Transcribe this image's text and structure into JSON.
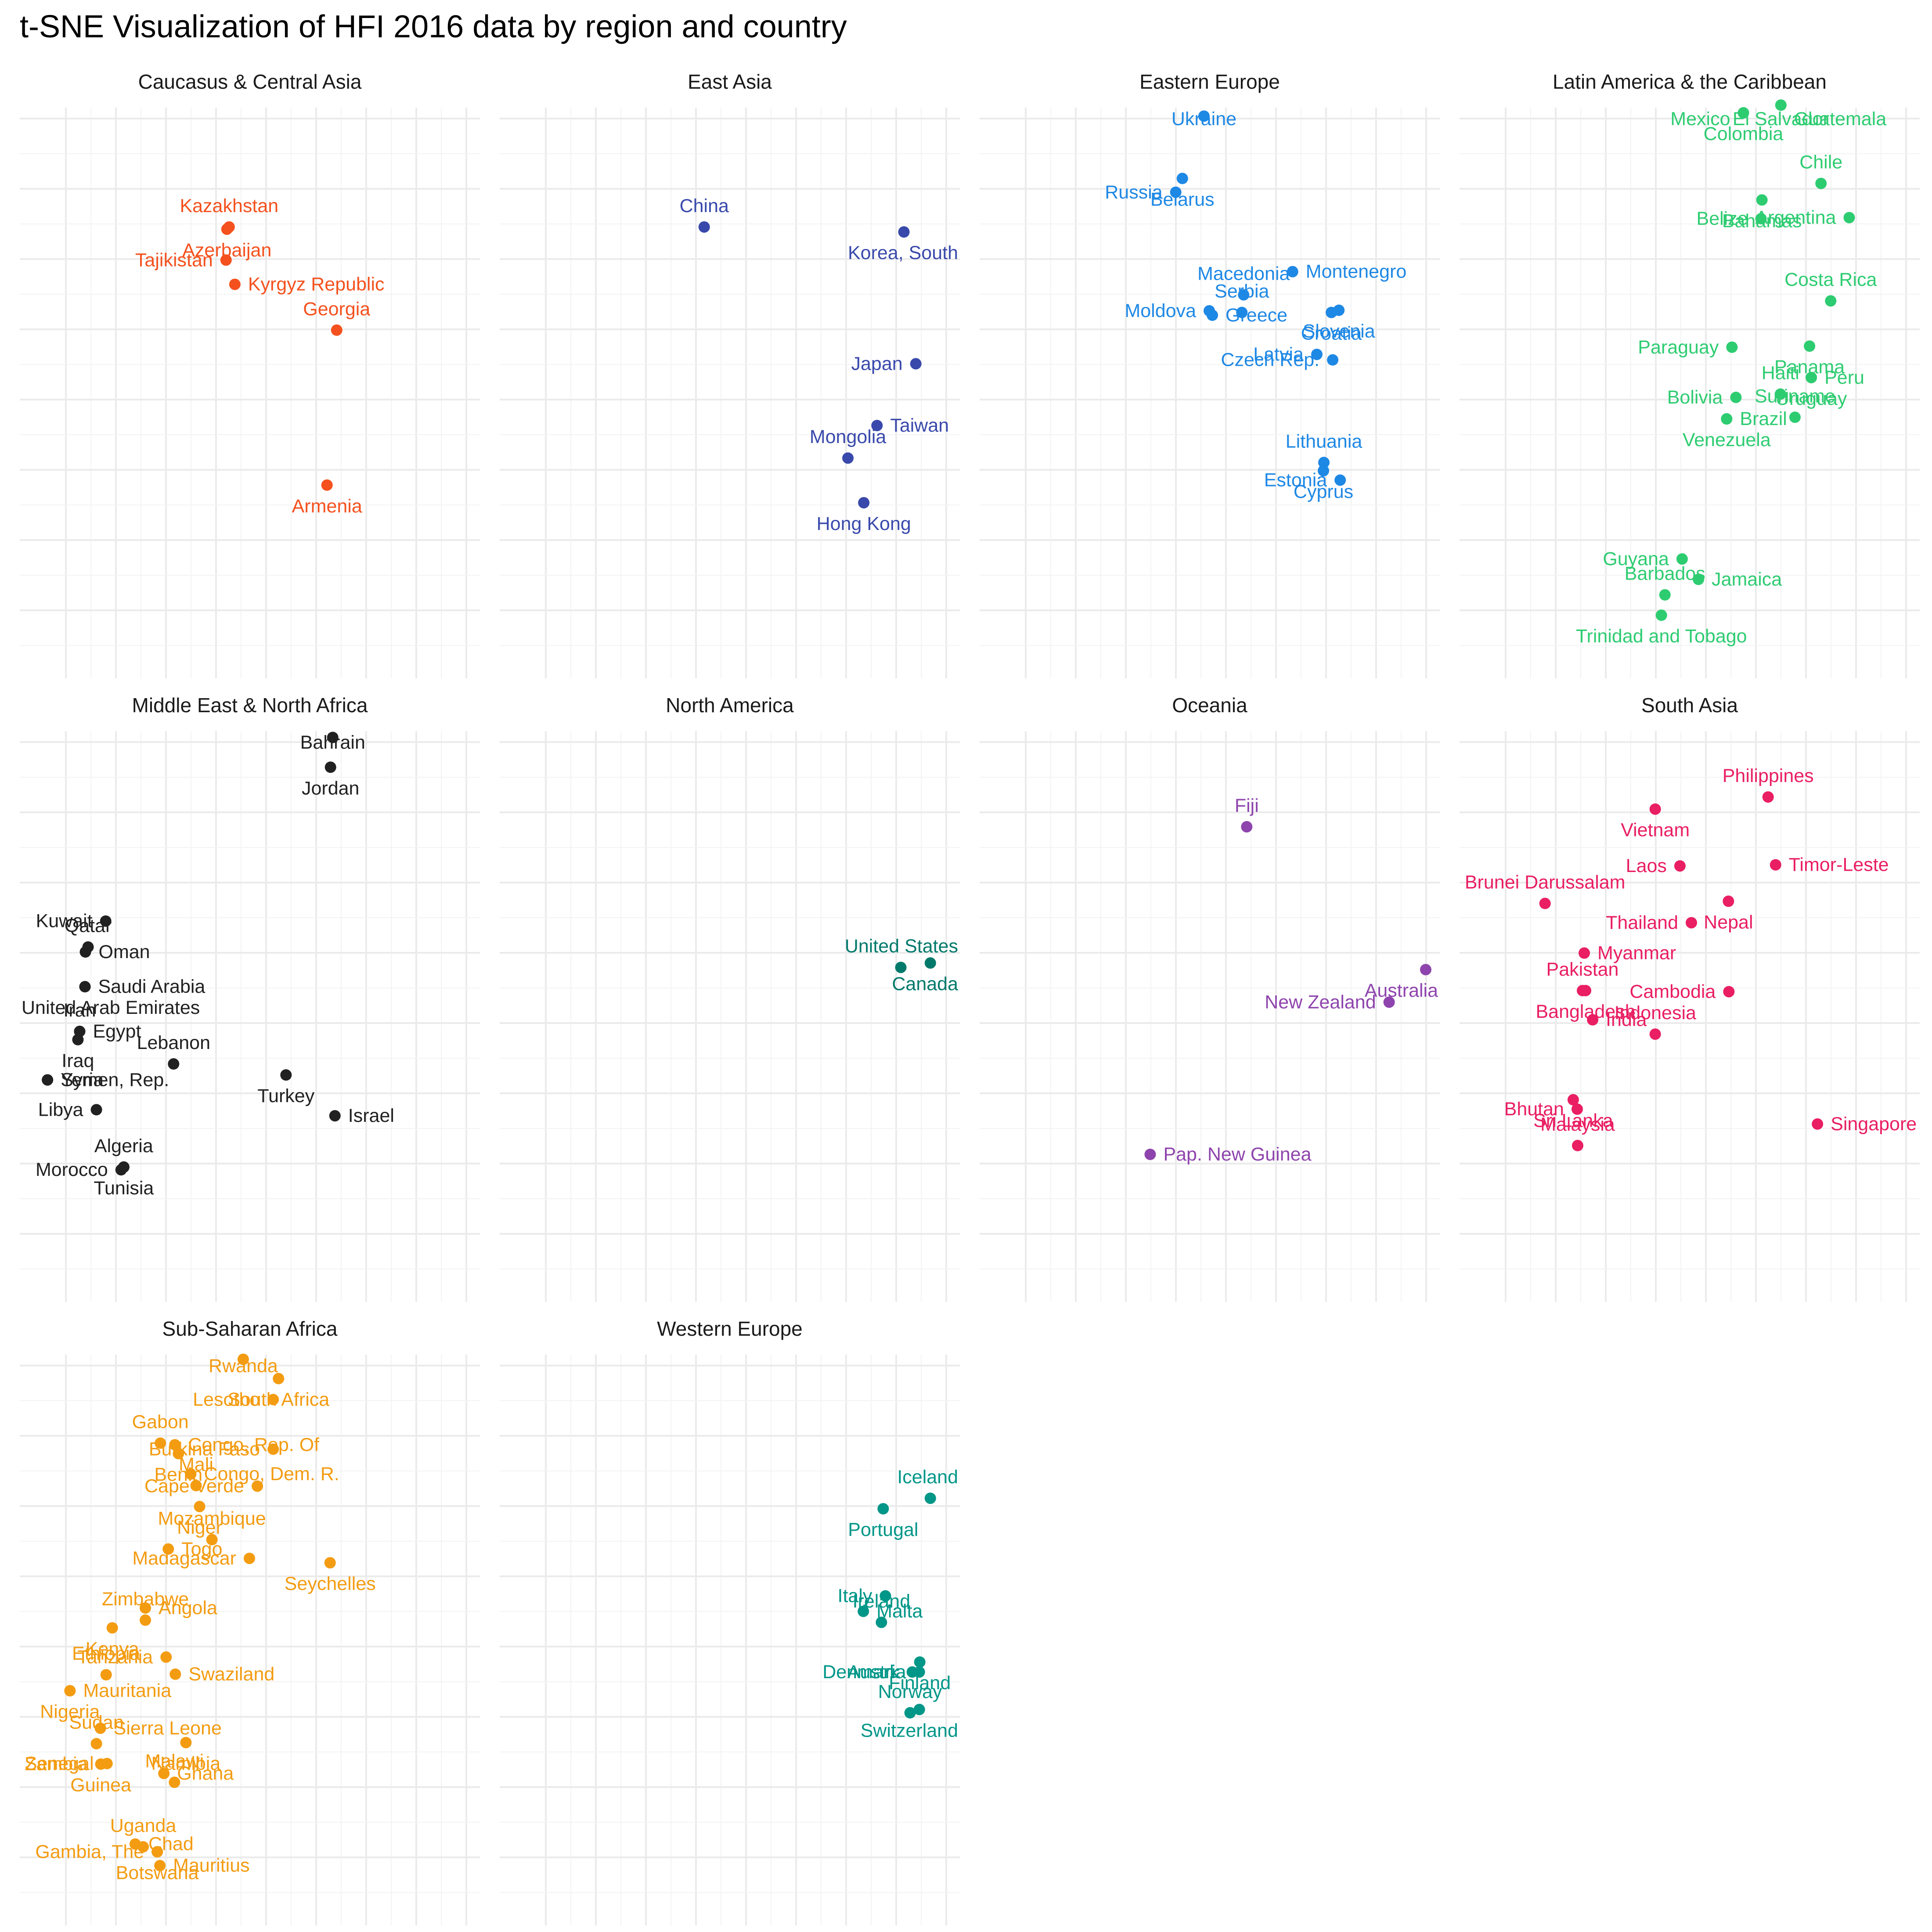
{
  "chart_data": {
    "type": "scatter",
    "title": "t-SNE Visualization of HFI 2016 data by region and country",
    "xlabel": "",
    "ylabel": "",
    "legend": "none",
    "grid": true,
    "xlim": [
      0,
      1000
    ],
    "ylim": [
      0,
      1000
    ],
    "facets": [
      {
        "name": "Caucasus & Central Asia",
        "color": "#F4511E",
        "points": [
          {
            "label": "Kazakhstan",
            "x": 453,
            "y": 801
          },
          {
            "label": "Azerbaijan",
            "x": 448,
            "y": 797
          },
          {
            "label": "Tajikistan",
            "x": 446,
            "y": 741
          },
          {
            "label": "Kyrgyz Republic",
            "x": 466,
            "y": 697
          },
          {
            "label": "Georgia",
            "x": 697,
            "y": 614
          },
          {
            "label": "Armenia",
            "x": 675,
            "y": 333
          }
        ]
      },
      {
        "name": "East Asia",
        "color": "#3949AB",
        "points": [
          {
            "label": "China",
            "x": 442,
            "y": 801
          },
          {
            "label": "Korea, South",
            "x": 895,
            "y": 792
          },
          {
            "label": "Japan",
            "x": 922,
            "y": 553
          },
          {
            "label": "Taiwan",
            "x": 834,
            "y": 441
          },
          {
            "label": "Mongolia",
            "x": 768,
            "y": 382
          },
          {
            "label": "Hong Kong",
            "x": 804,
            "y": 301
          }
        ]
      },
      {
        "name": "Eastern Europe",
        "color": "#1E88E5",
        "points": [
          {
            "label": "Ukraine",
            "x": 487,
            "y": 1002
          },
          {
            "label": "Belarus",
            "x": 438,
            "y": 889
          },
          {
            "label": "Russia",
            "x": 423,
            "y": 864
          },
          {
            "label": "Montenegro",
            "x": 688,
            "y": 720
          },
          {
            "label": "Macedonia",
            "x": 577,
            "y": 678
          },
          {
            "label": "Slovenia",
            "x": 793,
            "y": 650
          },
          {
            "label": "Moldova",
            "x": 499,
            "y": 649
          },
          {
            "label": "Greece",
            "x": 506,
            "y": 641
          },
          {
            "label": "Serbia",
            "x": 573,
            "y": 646
          },
          {
            "label": "Croatia",
            "x": 776,
            "y": 646
          },
          {
            "label": "Latvia",
            "x": 743,
            "y": 570
          },
          {
            "label": "Czech Rep.",
            "x": 779,
            "y": 560
          },
          {
            "label": "Lithuania",
            "x": 759,
            "y": 374
          },
          {
            "label": "Cyprus",
            "x": 758,
            "y": 359
          },
          {
            "label": "Estonia",
            "x": 796,
            "y": 342
          }
        ]
      },
      {
        "name": "Latin America & the Caribbean",
        "color": "#2ECC71",
        "points": [
          {
            "label": "El Salvador",
            "x": 707,
            "y": 1022
          },
          {
            "label": "Colombia",
            "x": 622,
            "y": 1008
          },
          {
            "label": "Mexico",
            "x": 622,
            "y": 1008
          },
          {
            "label": "Guatemala",
            "x": 707,
            "y": 1022
          },
          {
            "label": "Chile",
            "x": 798,
            "y": 880
          },
          {
            "label": "Bahamas",
            "x": 664,
            "y": 850
          },
          {
            "label": "Belize",
            "x": 662,
            "y": 816
          },
          {
            "label": "Argentina",
            "x": 862,
            "y": 818
          },
          {
            "label": "Costa Rica",
            "x": 820,
            "y": 667
          },
          {
            "label": "Panama",
            "x": 772,
            "y": 585
          },
          {
            "label": "Paraguay",
            "x": 596,
            "y": 583
          },
          {
            "label": "Peru",
            "x": 776,
            "y": 528
          },
          {
            "label": "Haiti",
            "x": 706,
            "y": 498
          },
          {
            "label": "Uruguay",
            "x": 776,
            "y": 528
          },
          {
            "label": "Bolivia",
            "x": 605,
            "y": 492
          },
          {
            "label": "Brazil",
            "x": 584,
            "y": 453
          },
          {
            "label": "Suriname",
            "x": 739,
            "y": 456
          },
          {
            "label": "Venezuela",
            "x": 584,
            "y": 453
          },
          {
            "label": "Guyana",
            "x": 483,
            "y": 199
          },
          {
            "label": "Jamaica",
            "x": 520,
            "y": 162
          },
          {
            "label": "Barbados",
            "x": 444,
            "y": 134
          },
          {
            "label": "Trinidad and Tobago",
            "x": 436,
            "y": 97
          }
        ]
      },
      {
        "name": "Middle East & North Africa",
        "color": "#212121",
        "points": [
          {
            "label": "Bahrain",
            "x": 688,
            "y": 1006
          },
          {
            "label": "Jordan",
            "x": 683,
            "y": 952
          },
          {
            "label": "Kuwait",
            "x": 173,
            "y": 673
          },
          {
            "label": "Oman",
            "x": 127,
            "y": 617
          },
          {
            "label": "Qatar",
            "x": 133,
            "y": 626
          },
          {
            "label": "United Arab Emirates",
            "x": 126,
            "y": 554
          },
          {
            "label": "Saudi Arabia",
            "x": 126,
            "y": 554
          },
          {
            "label": "Egypt",
            "x": 114,
            "y": 473
          },
          {
            "label": "Iran",
            "x": 114,
            "y": 473
          },
          {
            "label": "Iraq",
            "x": 110,
            "y": 458
          },
          {
            "label": "Syria",
            "x": 41,
            "y": 385
          },
          {
            "label": "Yemen, Rep.",
            "x": 41,
            "y": 385
          },
          {
            "label": "Lebanon",
            "x": 327,
            "y": 414
          },
          {
            "label": "Turkey",
            "x": 582,
            "y": 394
          },
          {
            "label": "Libya",
            "x": 152,
            "y": 331
          },
          {
            "label": "Israel",
            "x": 693,
            "y": 320
          },
          {
            "label": "Algeria",
            "x": 214,
            "y": 227
          },
          {
            "label": "Tunisia",
            "x": 214,
            "y": 227
          },
          {
            "label": "Morocco",
            "x": 208,
            "y": 222
          }
        ]
      },
      {
        "name": "North America",
        "color": "#00796B",
        "points": [
          {
            "label": "United States",
            "x": 888,
            "y": 589
          },
          {
            "label": "Canada",
            "x": 955,
            "y": 597
          }
        ]
      },
      {
        "name": "Oceania",
        "color": "#8E44AD",
        "points": [
          {
            "label": "Fiji",
            "x": 584,
            "y": 844
          },
          {
            "label": "Australia",
            "x": 990,
            "y": 585
          },
          {
            "label": "New Zealand",
            "x": 907,
            "y": 526
          },
          {
            "label": "Pap. New Guinea",
            "x": 365,
            "y": 250
          }
        ]
      },
      {
        "name": "South Asia",
        "color": "#E91E63",
        "points": [
          {
            "label": "Philippines",
            "x": 678,
            "y": 898
          },
          {
            "label": "Vietnam",
            "x": 422,
            "y": 876
          },
          {
            "label": "Laos",
            "x": 478,
            "y": 773
          },
          {
            "label": "Timor-Leste",
            "x": 695,
            "y": 775
          },
          {
            "label": "Brunei Darussalam",
            "x": 172,
            "y": 705
          },
          {
            "label": "Nepal",
            "x": 588,
            "y": 709
          },
          {
            "label": "Thailand",
            "x": 504,
            "y": 670
          },
          {
            "label": "Myanmar",
            "x": 261,
            "y": 615
          },
          {
            "label": "Pakistan",
            "x": 257,
            "y": 547
          },
          {
            "label": "Bangladesh",
            "x": 264,
            "y": 547
          },
          {
            "label": "Cambodia",
            "x": 589,
            "y": 545
          },
          {
            "label": "India",
            "x": 280,
            "y": 494
          },
          {
            "label": "Indonesia",
            "x": 422,
            "y": 468
          },
          {
            "label": "Sri Lanka",
            "x": 236,
            "y": 349
          },
          {
            "label": "Bhutan",
            "x": 245,
            "y": 332
          },
          {
            "label": "Singapore",
            "x": 790,
            "y": 305
          },
          {
            "label": "Malaysia",
            "x": 246,
            "y": 266
          }
        ]
      },
      {
        "name": "Sub-Saharan Africa",
        "color": "#F39C12",
        "points": [
          {
            "label": "Rwanda",
            "x": 485,
            "y": 1009
          },
          {
            "label": "South Africa",
            "x": 565,
            "y": 974
          },
          {
            "label": "Lesotho",
            "x": 553,
            "y": 936
          },
          {
            "label": "Congo, Rep. Of",
            "x": 330,
            "y": 854
          },
          {
            "label": "Gabon",
            "x": 297,
            "y": 857
          },
          {
            "label": "Benin",
            "x": 338,
            "y": 838
          },
          {
            "label": "Burkina Faso",
            "x": 553,
            "y": 846
          },
          {
            "label": "Congo, Dem. R.",
            "x": 366,
            "y": 801
          },
          {
            "label": "Mali",
            "x": 378,
            "y": 780
          },
          {
            "label": "Niger",
            "x": 386,
            "y": 742
          },
          {
            "label": "Cape Verde",
            "x": 517,
            "y": 779
          },
          {
            "label": "Togo",
            "x": 315,
            "y": 665
          },
          {
            "label": "Mozambique",
            "x": 414,
            "y": 682
          },
          {
            "label": "Seychelles",
            "x": 682,
            "y": 640
          },
          {
            "label": "Madagascar",
            "x": 499,
            "y": 648
          },
          {
            "label": "Angola",
            "x": 263,
            "y": 558
          },
          {
            "label": "Zimbabwe",
            "x": 263,
            "y": 536
          },
          {
            "label": "Kenya",
            "x": 188,
            "y": 522
          },
          {
            "label": "Tanzania",
            "x": 310,
            "y": 469
          },
          {
            "label": "Swaziland",
            "x": 331,
            "y": 438
          },
          {
            "label": "Ethiopia",
            "x": 174,
            "y": 437
          },
          {
            "label": "Nigeria",
            "x": 92,
            "y": 408
          },
          {
            "label": "Mauritania",
            "x": 92,
            "y": 408
          },
          {
            "label": "Sierra Leone",
            "x": 161,
            "y": 340
          },
          {
            "label": "Sudan",
            "x": 152,
            "y": 312
          },
          {
            "label": "Namibia",
            "x": 355,
            "y": 314
          },
          {
            "label": "Senegal",
            "x": 176,
            "y": 276
          },
          {
            "label": "Ghana",
            "x": 305,
            "y": 258
          },
          {
            "label": "Malawi",
            "x": 329,
            "y": 242
          },
          {
            "label": "Guinea",
            "x": 162,
            "y": 275
          },
          {
            "label": "Zambia",
            "x": 162,
            "y": 275
          },
          {
            "label": "Chad",
            "x": 240,
            "y": 130
          },
          {
            "label": "Uganda",
            "x": 258,
            "y": 125
          },
          {
            "label": "Botswana",
            "x": 290,
            "y": 116
          },
          {
            "label": "Gambia, The",
            "x": 290,
            "y": 116
          },
          {
            "label": "Mauritius",
            "x": 296,
            "y": 91
          }
        ]
      },
      {
        "name": "Western Europe",
        "color": "#009688",
        "points": [
          {
            "label": "Iceland",
            "x": 955,
            "y": 757
          },
          {
            "label": "Portugal",
            "x": 848,
            "y": 738
          },
          {
            "label": "Italy",
            "x": 853,
            "y": 580
          },
          {
            "label": "Malta",
            "x": 803,
            "y": 552
          },
          {
            "label": "Ireland",
            "x": 844,
            "y": 532
          },
          {
            "label": "Finland",
            "x": 931,
            "y": 460
          },
          {
            "label": "Austria",
            "x": 930,
            "y": 442
          },
          {
            "label": "Denmark",
            "x": 914,
            "y": 442
          },
          {
            "label": "Norway",
            "x": 909,
            "y": 368
          },
          {
            "label": "Switzerland",
            "x": 930,
            "y": 374
          }
        ]
      }
    ]
  }
}
